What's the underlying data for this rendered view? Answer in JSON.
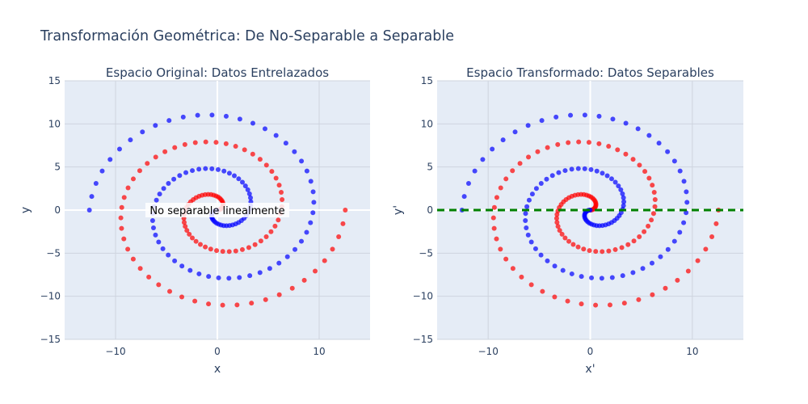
{
  "figure": {
    "title": "Transformación Geométrica: De No-Separable a Separable"
  },
  "colors": {
    "plot_bg": "#e5ecf6",
    "grid": "#ced4df",
    "zero": "#ffffff",
    "text": "#2a3f5f",
    "tick": "#2a3f5f",
    "class_a": "#ff0000",
    "class_b": "#0000ff",
    "boundary": "#008000"
  },
  "chart_data": [
    {
      "type": "scatter",
      "title": "Espacio Original: Datos Entrelazados",
      "xlabel": "x",
      "ylabel": "y",
      "xlim": [
        -15,
        15
      ],
      "ylim": [
        -15,
        15
      ],
      "xticks": [
        -10,
        0,
        10
      ],
      "yticks": [
        -15,
        -10,
        -5,
        0,
        5,
        10,
        15
      ],
      "grid": true,
      "legend": "none",
      "spiral": {
        "n": 100,
        "theta_start": 0,
        "theta_end": 12.566,
        "radius_per_radian": 1.0,
        "class_a_rotation": 0,
        "class_b_rotation": 3.14159
      },
      "annotation": {
        "text": "No separable linealmente",
        "x": 0,
        "y": 0
      }
    },
    {
      "type": "scatter",
      "title": "Espacio Transformado: Datos Separables",
      "xlabel": "x'",
      "ylabel": "y'",
      "xlim": [
        -15,
        15
      ],
      "ylim": [
        -15,
        15
      ],
      "xticks": [
        -10,
        0,
        10
      ],
      "yticks": [
        -15,
        -10,
        -5,
        0,
        5,
        10,
        15
      ],
      "grid": true,
      "legend": "none",
      "spiral": {
        "n": 100,
        "theta_start": 0,
        "theta_end": 12.566,
        "radius_per_radian": 1.0,
        "class_a_rotation": 0,
        "class_b_rotation": 3.14159
      },
      "decision_boundary": {
        "style": "dashed",
        "y": 0,
        "x_range": [
          -15,
          15
        ]
      }
    }
  ]
}
